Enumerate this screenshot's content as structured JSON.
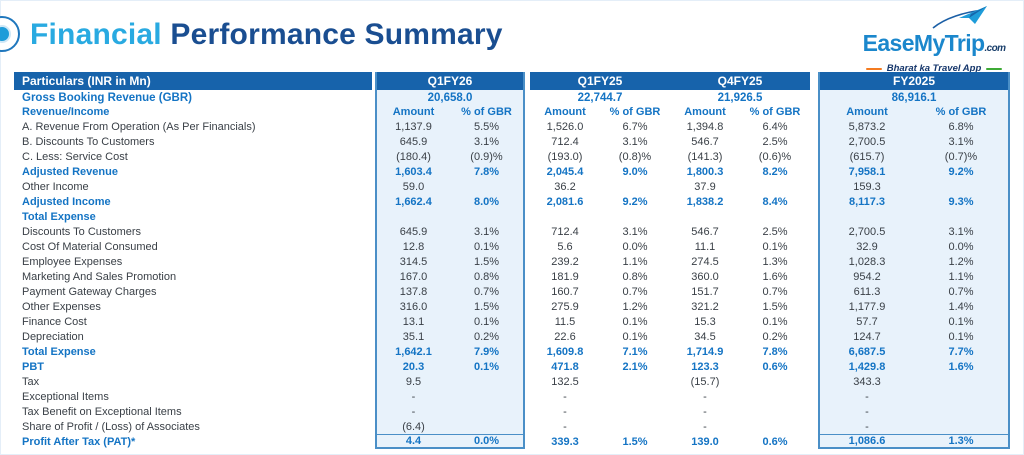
{
  "header": {
    "title_part1": "Financial",
    "title_part2": " Performance Summary"
  },
  "logo": {
    "brand": "EaseMyTrip",
    "suffix": ".com",
    "tagline": "Bharat ka Travel App"
  },
  "colors": {
    "title_light_blue": "#29aae1",
    "title_dark_blue": "#1a4e91",
    "header_bar": "#1763ab",
    "bold_blue_text": "#1474c4",
    "box_background": "#e8f2fb",
    "box_border": "#4a8fc7",
    "tagline_orange": "#f47b20",
    "tagline_green": "#3daa35"
  },
  "table": {
    "particulars_header": "Particulars (INR in Mn)",
    "gbr_label": "Gross Booking Revenue (GBR)",
    "revenue_income_label": "Revenue/Income",
    "amount_label": "Amount",
    "pct_label": "% of GBR",
    "periods": [
      {
        "name": "Q1FY26",
        "gbr": "20,658.0"
      },
      {
        "name": "Q1FY25",
        "gbr": "22,744.7"
      },
      {
        "name": "Q4FY25",
        "gbr": "21,926.5"
      },
      {
        "name": "FY2025",
        "gbr": "86,916.1"
      }
    ],
    "rows": [
      {
        "label": "A. Revenue From Operation (As Per Financials)",
        "style": "normal",
        "values": [
          "1,137.9",
          "5.5%",
          "1,526.0",
          "6.7%",
          "1,394.8",
          "6.4%",
          "5,873.2",
          "6.8%"
        ]
      },
      {
        "label": "B. Discounts To Customers",
        "style": "normal",
        "values": [
          "645.9",
          "3.1%",
          "712.4",
          "3.1%",
          "546.7",
          "2.5%",
          "2,700.5",
          "3.1%"
        ]
      },
      {
        "label": "C. Less: Service Cost",
        "style": "normal",
        "values": [
          "(180.4)",
          "(0.9)%",
          "(193.0)",
          "(0.8)%",
          "(141.3)",
          "(0.6)%",
          "(615.7)",
          "(0.7)%"
        ]
      },
      {
        "label": "Adjusted Revenue",
        "style": "bold",
        "values": [
          "1,603.4",
          "7.8%",
          "2,045.4",
          "9.0%",
          "1,800.3",
          "8.2%",
          "7,958.1",
          "9.2%"
        ]
      },
      {
        "label": "Other Income",
        "style": "normal",
        "values": [
          "59.0",
          "",
          "36.2",
          "",
          "37.9",
          "",
          "159.3",
          ""
        ]
      },
      {
        "label": "Adjusted Income",
        "style": "bold",
        "values": [
          "1,662.4",
          "8.0%",
          "2,081.6",
          "9.2%",
          "1,838.2",
          "8.4%",
          "8,117.3",
          "9.3%"
        ]
      },
      {
        "label": "Total Expense",
        "style": "bold",
        "values": [
          "",
          "",
          "",
          "",
          "",
          "",
          "",
          ""
        ]
      },
      {
        "label": "Discounts To Customers",
        "style": "normal",
        "values": [
          "645.9",
          "3.1%",
          "712.4",
          "3.1%",
          "546.7",
          "2.5%",
          "2,700.5",
          "3.1%"
        ]
      },
      {
        "label": "Cost Of Material Consumed",
        "style": "normal",
        "values": [
          "12.8",
          "0.1%",
          "5.6",
          "0.0%",
          "11.1",
          "0.1%",
          "32.9",
          "0.0%"
        ]
      },
      {
        "label": "Employee Expenses",
        "style": "normal",
        "values": [
          "314.5",
          "1.5%",
          "239.2",
          "1.1%",
          "274.5",
          "1.3%",
          "1,028.3",
          "1.2%"
        ]
      },
      {
        "label": "Marketing And Sales Promotion",
        "style": "normal",
        "values": [
          "167.0",
          "0.8%",
          "181.9",
          "0.8%",
          "360.0",
          "1.6%",
          "954.2",
          "1.1%"
        ]
      },
      {
        "label": "Payment Gateway Charges",
        "style": "normal",
        "values": [
          "137.8",
          "0.7%",
          "160.7",
          "0.7%",
          "151.7",
          "0.7%",
          "611.3",
          "0.7%"
        ]
      },
      {
        "label": "Other Expenses",
        "style": "normal",
        "values": [
          "316.0",
          "1.5%",
          "275.9",
          "1.2%",
          "321.2",
          "1.5%",
          "1,177.9",
          "1.4%"
        ]
      },
      {
        "label": "Finance Cost",
        "style": "normal",
        "values": [
          "13.1",
          "0.1%",
          "11.5",
          "0.1%",
          "15.3",
          "0.1%",
          "57.7",
          "0.1%"
        ]
      },
      {
        "label": "Depreciation",
        "style": "normal",
        "values": [
          "35.1",
          "0.2%",
          "22.6",
          "0.1%",
          "34.5",
          "0.2%",
          "124.7",
          "0.1%"
        ]
      },
      {
        "label": "Total Expense",
        "style": "bold",
        "values": [
          "1,642.1",
          "7.9%",
          "1,609.8",
          "7.1%",
          "1,714.9",
          "7.8%",
          "6,687.5",
          "7.7%"
        ]
      },
      {
        "label": "PBT",
        "style": "bold",
        "values": [
          "20.3",
          "0.1%",
          "471.8",
          "2.1%",
          "123.3",
          "0.6%",
          "1,429.8",
          "1.6%"
        ]
      },
      {
        "label": "Tax",
        "style": "normal",
        "values": [
          "9.5",
          "",
          "132.5",
          "",
          "(15.7)",
          "",
          "343.3",
          ""
        ]
      },
      {
        "label": "Exceptional Items",
        "style": "normal",
        "values": [
          "-",
          "",
          "-",
          "",
          "-",
          "",
          "-",
          ""
        ]
      },
      {
        "label": "Tax Benefit on Exceptional Items",
        "style": "normal",
        "values": [
          "-",
          "",
          "-",
          "",
          "-",
          "",
          "-",
          ""
        ]
      },
      {
        "label": "Share of Profit / (Loss) of Associates",
        "style": "normal",
        "values": [
          "(6.4)",
          "",
          "-",
          "",
          "-",
          "",
          "-",
          ""
        ]
      },
      {
        "label": "Profit After Tax (PAT)*",
        "style": "bold",
        "values": [
          "4.4",
          "0.0%",
          "339.3",
          "1.5%",
          "139.0",
          "0.6%",
          "1,086.6",
          "1.3%"
        ]
      }
    ]
  }
}
